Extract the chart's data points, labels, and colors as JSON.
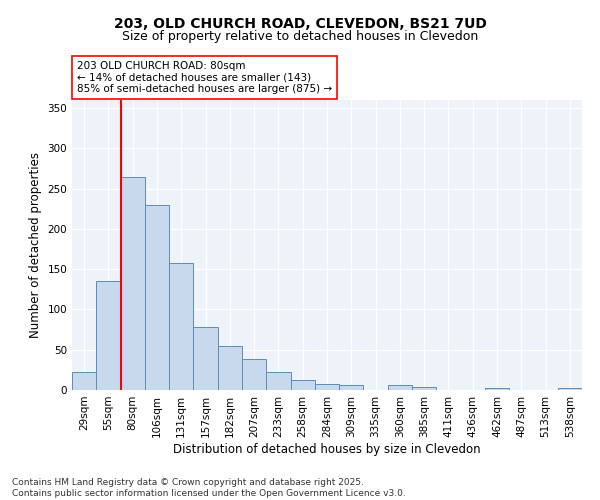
{
  "title": "203, OLD CHURCH ROAD, CLEVEDON, BS21 7UD",
  "subtitle": "Size of property relative to detached houses in Clevedon",
  "xlabel": "Distribution of detached houses by size in Clevedon",
  "ylabel": "Number of detached properties",
  "categories": [
    "29sqm",
    "55sqm",
    "80sqm",
    "106sqm",
    "131sqm",
    "157sqm",
    "182sqm",
    "207sqm",
    "233sqm",
    "258sqm",
    "284sqm",
    "309sqm",
    "335sqm",
    "360sqm",
    "385sqm",
    "411sqm",
    "436sqm",
    "462sqm",
    "487sqm",
    "513sqm",
    "538sqm"
  ],
  "values": [
    22,
    135,
    265,
    230,
    158,
    78,
    55,
    38,
    22,
    13,
    8,
    6,
    0,
    6,
    4,
    0,
    0,
    3,
    0,
    0,
    2
  ],
  "bar_color": "#c9d9ed",
  "bar_edge_color": "#5b8db8",
  "vline_x": 1.5,
  "vline_color": "red",
  "annotation_text": "203 OLD CHURCH ROAD: 80sqm\n← 14% of detached houses are smaller (143)\n85% of semi-detached houses are larger (875) →",
  "annotation_box_color": "white",
  "annotation_box_edge_color": "red",
  "ylim": [
    0,
    360
  ],
  "yticks": [
    0,
    50,
    100,
    150,
    200,
    250,
    300,
    350
  ],
  "bg_color": "#eef2f9",
  "footer": "Contains HM Land Registry data © Crown copyright and database right 2025.\nContains public sector information licensed under the Open Government Licence v3.0.",
  "title_fontsize": 10,
  "subtitle_fontsize": 9,
  "xlabel_fontsize": 8.5,
  "ylabel_fontsize": 8.5,
  "tick_fontsize": 7.5,
  "annotation_fontsize": 7.5,
  "footer_fontsize": 6.5
}
